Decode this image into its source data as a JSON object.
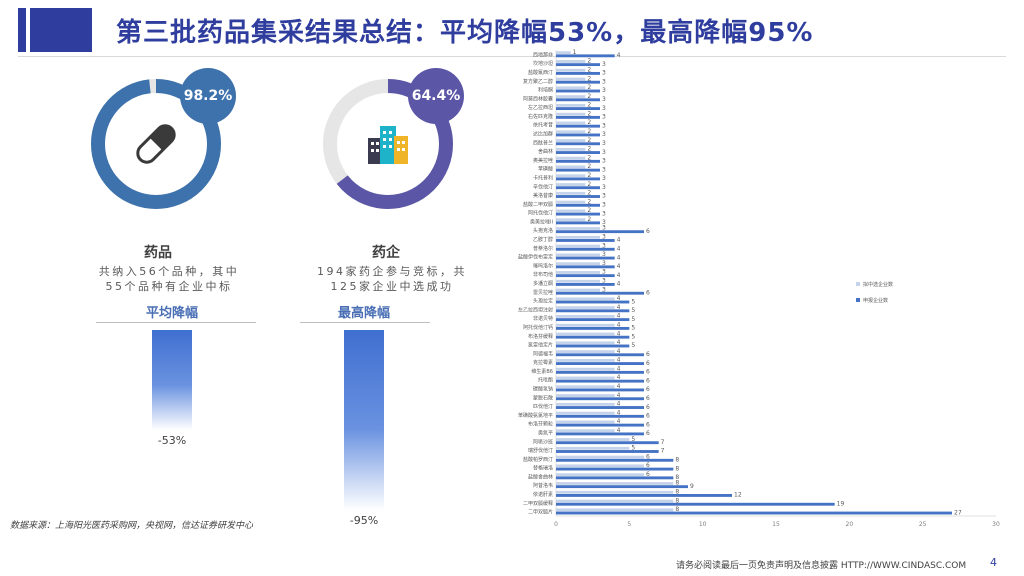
{
  "header": {
    "title": "第三批药品集采结果总结：平均降幅53%，最高降幅95%"
  },
  "left": {
    "drug": {
      "pct_label": "98.2%",
      "pct_value": 0.982,
      "title": "药品",
      "desc_line1": "共纳入56个品种，其中",
      "desc_line2": "55个品种有企业中标",
      "icon": "pill-icon",
      "color": "#3d72ad"
    },
    "firm": {
      "pct_label": "64.4%",
      "pct_value": 0.644,
      "title": "药企",
      "desc_line1": "194家药企参与竞标，共",
      "desc_line2": "125家企业中选成功",
      "icon": "building-icon",
      "color": "#5b57a6"
    },
    "avg": {
      "title": "平均降幅",
      "label": "-53%",
      "value": 53
    },
    "max": {
      "title": "最高降幅",
      "label": "-95%",
      "value": 95
    }
  },
  "source": "数据来源：上海阳光医药采购网，央视网，信达证券研发中心",
  "footer": {
    "disclaimer": "请务必阅读最后一页免责声明及信息披露  HTTP://WWW.CINDASC.COM",
    "page": "4"
  },
  "chart_data": {
    "type": "bar",
    "orientation": "horizontal",
    "xlim": [
      0,
      30
    ],
    "x_ticks": [
      "0",
      "5",
      "10",
      "15",
      "20",
      "25",
      "30"
    ],
    "legend": [
      "拟中选企业数",
      "申报企业数"
    ],
    "legend_position": "right",
    "colors": [
      "#c5d3ea",
      "#4472c4"
    ],
    "categories": [
      "西地那非",
      "坎地沙坦",
      "盐酸氟西汀",
      "复方聚乙二醇",
      "利培酮",
      "阿莫西林胶囊",
      "左乙拉西坦",
      "右佐匹克隆",
      "依托考昔",
      "达比加群",
      "西酞普兰",
      "舍曲林",
      "奥美拉唑",
      "苯磺酸",
      "卡托普利",
      "辛伐他汀",
      "美洛昔康",
      "盐酸二甲双胍",
      "阿托伐他汀",
      "奥美拉唑II",
      "头孢克洛",
      "乙胺丁醇",
      "普萘洛尔",
      "盐酸伊伐布雷定",
      "噻吗洛尔",
      "非布司他",
      "多潘立酮",
      "雷贝拉唑",
      "头孢拉定",
      "左乙拉西坦注射",
      "非诺贝特",
      "阿托伐他汀钙",
      "布洛芬缓释",
      "氯雷他定片",
      "阿德福韦",
      "克拉霉素",
      "维生素B6",
      "托吡酯",
      "碳酸氢钠",
      "蒙脱石散",
      "匹伐他汀",
      "苯磺酸氨氯地平",
      "布洛芬颗粒",
      "奥氮平",
      "阿哌沙班",
      "瑞舒伐他汀",
      "盐酸帕罗西汀",
      "替格瑞洛",
      "盐酸舍曲林",
      "阿昔洛韦",
      "依诺肝素",
      "二甲双胍缓释",
      "二甲双胍片"
    ],
    "series": [
      {
        "name": "拟中选企业数",
        "values": [
          1,
          2,
          2,
          2,
          2,
          2,
          2,
          2,
          2,
          2,
          2,
          2,
          2,
          2,
          2,
          2,
          2,
          2,
          2,
          2,
          3,
          3,
          3,
          3,
          3,
          3,
          3,
          3,
          4,
          4,
          4,
          4,
          4,
          4,
          4,
          4,
          4,
          4,
          4,
          4,
          4,
          4,
          4,
          4,
          5,
          5,
          6,
          6,
          6,
          8,
          8,
          8,
          8
        ]
      },
      {
        "name": "申报企业数",
        "values": [
          4,
          3,
          3,
          3,
          3,
          3,
          3,
          3,
          3,
          3,
          3,
          3,
          3,
          3,
          3,
          3,
          3,
          3,
          3,
          3,
          6,
          4,
          4,
          4,
          4,
          4,
          4,
          6,
          5,
          5,
          5,
          5,
          5,
          5,
          6,
          6,
          6,
          6,
          6,
          6,
          6,
          6,
          6,
          6,
          7,
          7,
          8,
          8,
          8,
          9,
          12,
          19,
          27
        ]
      }
    ]
  }
}
